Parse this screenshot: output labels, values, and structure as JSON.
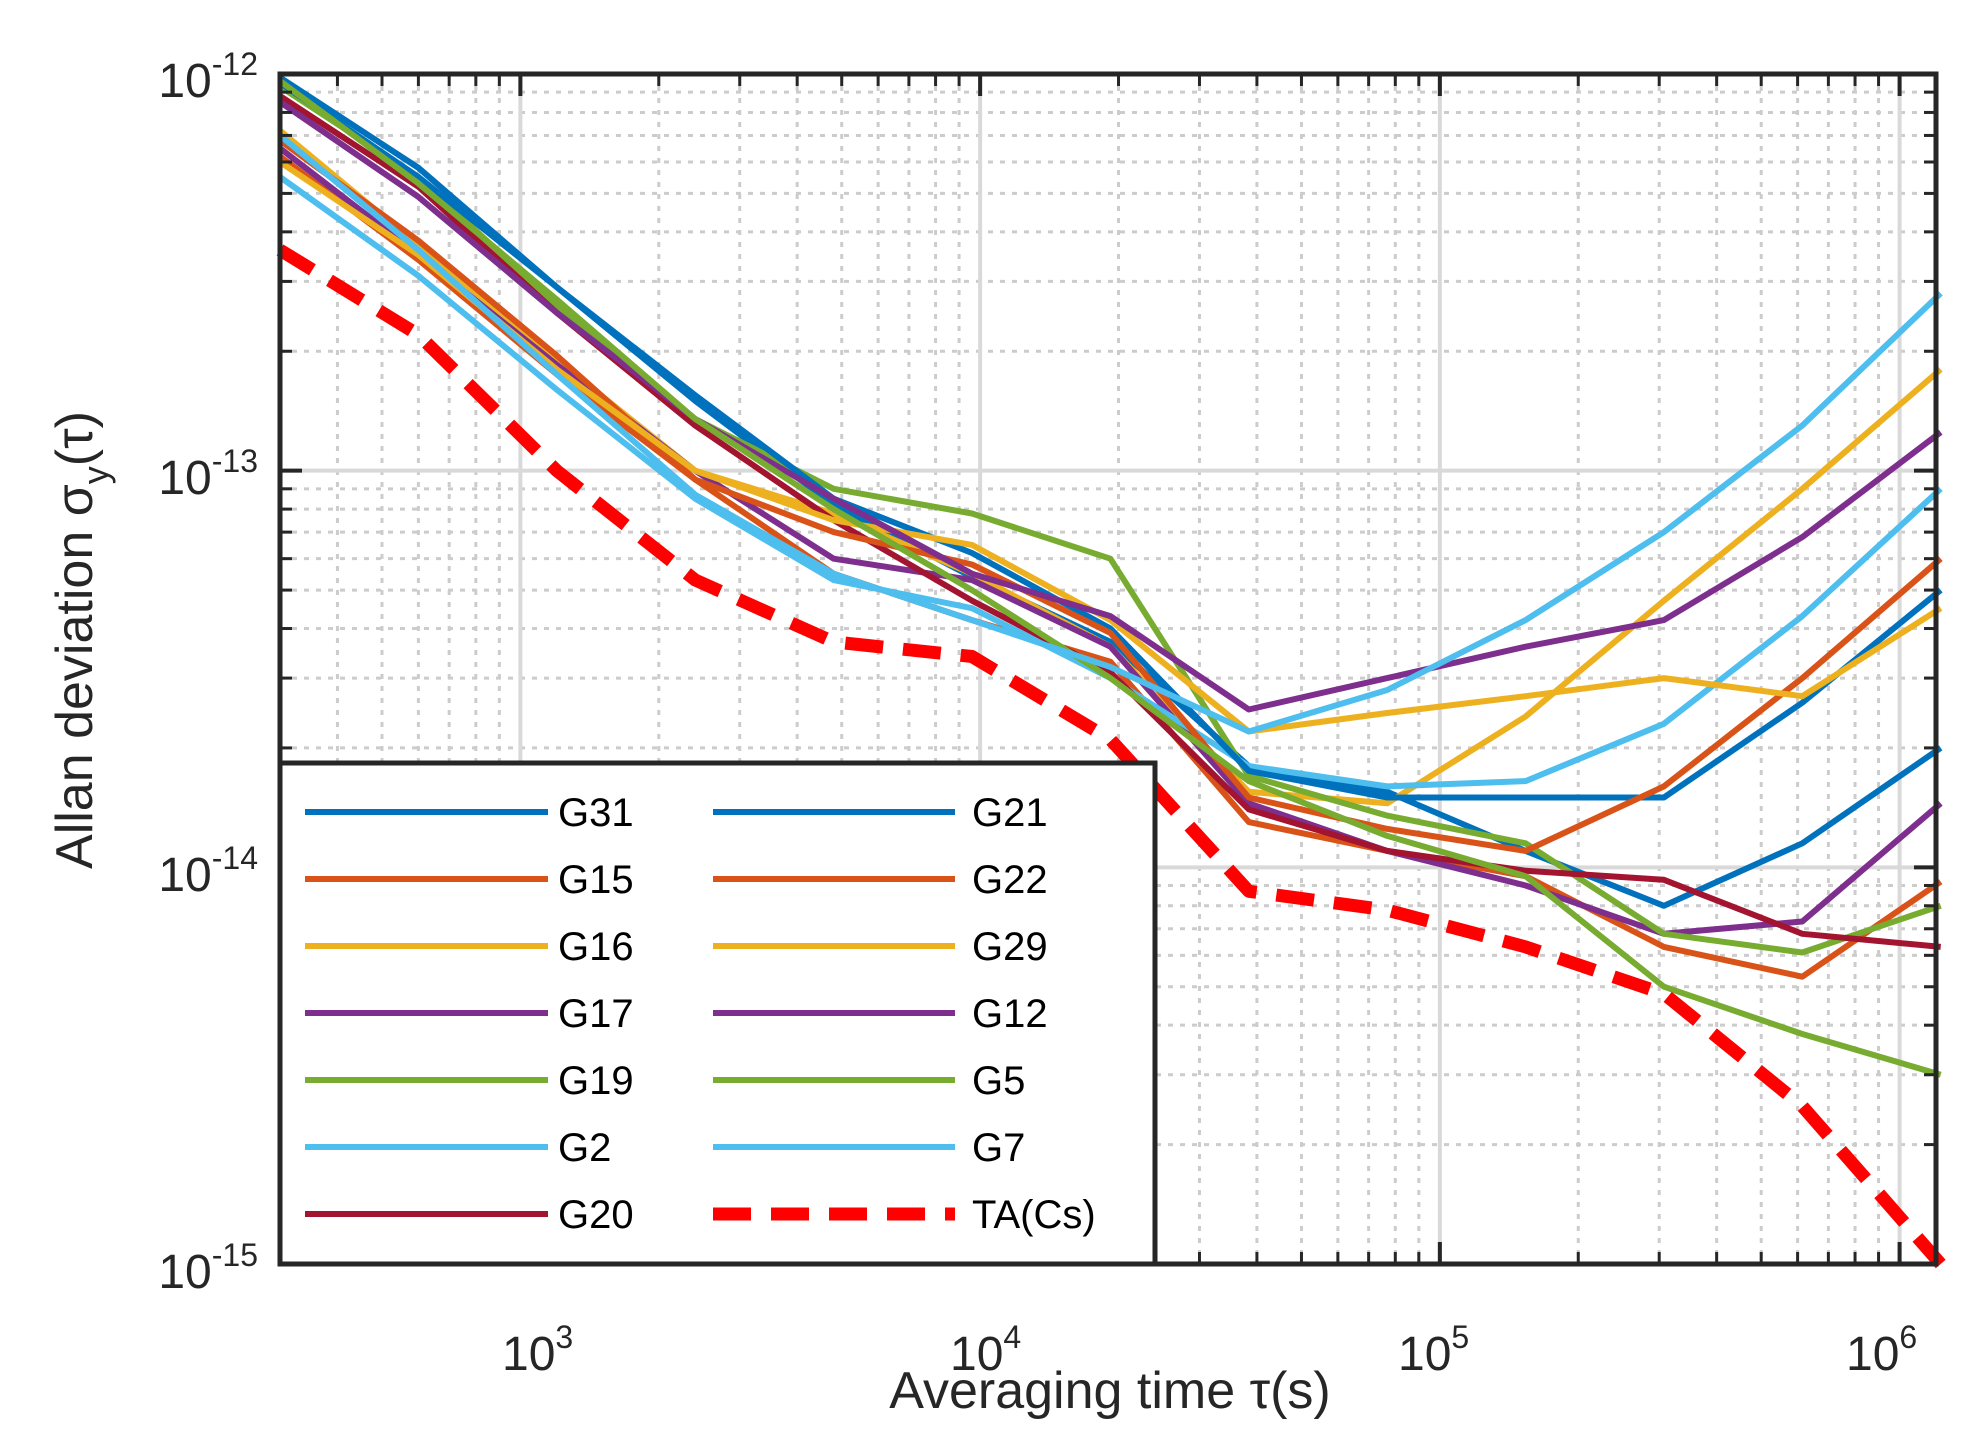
{
  "chart_data": {
    "type": "line",
    "xscale": "log",
    "yscale": "log",
    "xlim": [
      300,
      1200000
    ],
    "ylim": [
      1e-15,
      1e-12
    ],
    "xlabel": "Averaging time τ(s)",
    "ylabel": {
      "main": "Allan deviation σ",
      "sub": "y",
      "tail": "(τ)"
    },
    "grid": true,
    "legend_location": "lower-left",
    "x_ticks": [
      {
        "value": 1000,
        "base": "10",
        "exp": "3"
      },
      {
        "value": 10000,
        "base": "10",
        "exp": "4"
      },
      {
        "value": 100000,
        "base": "10",
        "exp": "5"
      },
      {
        "value": 1000000,
        "base": "10",
        "exp": "6"
      }
    ],
    "y_ticks": [
      {
        "value": 1e-12,
        "base": "10",
        "exp": "-12"
      },
      {
        "value": 1e-13,
        "base": "10",
        "exp": "-13"
      },
      {
        "value": 1e-14,
        "base": "10",
        "exp": "-14"
      },
      {
        "value": 1e-15,
        "base": "10",
        "exp": "-15"
      }
    ],
    "x": [
      300,
      600,
      1200,
      2400,
      4800,
      9600,
      19200,
      38400,
      76800,
      153600,
      307200,
      614400,
      1228800
    ],
    "series": [
      {
        "name": "G31",
        "color": "#0072BD",
        "width": 6,
        "dash": "",
        "values": [
          9.8e-13,
          5.8e-13,
          2.9e-13,
          1.5e-13,
          8.2e-14,
          5.4e-14,
          3.7e-14,
          1.8e-14,
          1.55e-14,
          1.1e-14,
          8e-15,
          1.15e-14,
          2e-14
        ]
      },
      {
        "name": "G15",
        "color": "#D95319",
        "width": 6,
        "dash": "",
        "values": [
          6.2e-13,
          3.4e-13,
          1.75e-13,
          9.5e-14,
          5.5e-14,
          4.2e-14,
          3.3e-14,
          1.3e-14,
          1.1e-14,
          9.5e-15,
          6.3e-15,
          5.3e-15,
          9.2e-15
        ]
      },
      {
        "name": "G16",
        "color": "#EDB120",
        "width": 6,
        "dash": "",
        "values": [
          7.2e-13,
          3.7e-13,
          1.9e-13,
          1e-13,
          7.8e-14,
          5.5e-14,
          3.6e-14,
          1.55e-14,
          1.45e-14,
          2.4e-14,
          4.7e-14,
          9e-14,
          1.8e-13
        ]
      },
      {
        "name": "G17",
        "color": "#7E2F8E",
        "width": 6,
        "dash": "",
        "values": [
          6.5e-13,
          3.5e-13,
          1.85e-13,
          1e-13,
          6e-14,
          5.3e-14,
          3.6e-14,
          1.45e-14,
          1.1e-14,
          9e-15,
          6.8e-15,
          7.3e-15,
          1.45e-14
        ]
      },
      {
        "name": "G19",
        "color": "#77AC30",
        "width": 6,
        "dash": "",
        "values": [
          9.3e-13,
          5.5e-13,
          2.6e-13,
          1.35e-13,
          9e-14,
          7.8e-14,
          6e-14,
          1.7e-14,
          1.35e-14,
          1.15e-14,
          6.8e-15,
          6.1e-15,
          8e-15
        ]
      },
      {
        "name": "G2",
        "color": "#4DBEEE",
        "width": 6,
        "dash": "",
        "values": [
          5.5e-13,
          3.1e-13,
          1.6e-13,
          8.5e-14,
          5.3e-14,
          4.5e-14,
          3e-14,
          1.8e-14,
          1.6e-14,
          1.65e-14,
          2.3e-14,
          4.3e-14,
          9e-14
        ]
      },
      {
        "name": "G20",
        "color": "#A2142F",
        "width": 6,
        "dash": "",
        "values": [
          8.8e-13,
          5.2e-13,
          2.5e-13,
          1.3e-13,
          7.5e-14,
          4.7e-14,
          3.1e-14,
          1.4e-14,
          1.1e-14,
          9.8e-15,
          9.3e-15,
          6.8e-15,
          6.3e-15
        ]
      },
      {
        "name": "G21",
        "color": "#0072BD",
        "width": 6,
        "dash": "",
        "values": [
          9.5e-13,
          5.5e-13,
          2.9e-13,
          1.55e-13,
          8.5e-14,
          6.2e-14,
          4e-14,
          1.75e-14,
          1.5e-14,
          1.5e-14,
          1.5e-14,
          2.6e-14,
          5e-14
        ]
      },
      {
        "name": "G22",
        "color": "#D95319",
        "width": 6,
        "dash": "",
        "values": [
          6.8e-13,
          3.8e-13,
          1.95e-13,
          9.5e-14,
          7e-14,
          5.8e-14,
          3.9e-14,
          1.5e-14,
          1.25e-14,
          1.1e-14,
          1.6e-14,
          3e-14,
          6e-14
        ]
      },
      {
        "name": "G29",
        "color": "#EDB120",
        "width": 6,
        "dash": "",
        "values": [
          6e-13,
          3.5e-13,
          1.8e-13,
          1e-13,
          7.5e-14,
          6.5e-14,
          4.2e-14,
          2.2e-14,
          2.45e-14,
          2.7e-14,
          3e-14,
          2.7e-14,
          4.5e-14
        ]
      },
      {
        "name": "G12",
        "color": "#7E2F8E",
        "width": 6,
        "dash": "",
        "values": [
          8.5e-13,
          4.9e-13,
          2.5e-13,
          1.35e-13,
          8.5e-14,
          5.5e-14,
          4.3e-14,
          2.5e-14,
          3e-14,
          3.6e-14,
          4.2e-14,
          6.8e-14,
          1.25e-13
        ]
      },
      {
        "name": "G5",
        "color": "#77AC30",
        "width": 6,
        "dash": "",
        "values": [
          9.6e-13,
          5.3e-13,
          2.7e-13,
          1.35e-13,
          8e-14,
          5e-14,
          3e-14,
          1.65e-14,
          1.2e-14,
          9.5e-15,
          5e-15,
          3.8e-15,
          3e-15
        ]
      },
      {
        "name": "G7",
        "color": "#4DBEEE",
        "width": 6,
        "dash": "",
        "values": [
          7e-13,
          3.6e-13,
          1.75e-13,
          8.7e-14,
          5.5e-14,
          4.2e-14,
          3.2e-14,
          2.2e-14,
          2.8e-14,
          4.2e-14,
          7e-14,
          1.3e-13,
          2.8e-13
        ]
      },
      {
        "name": "TA(Cs)",
        "color": "#FF0000",
        "width": 13,
        "dash": "38 20",
        "values": [
          3.6e-13,
          2.2e-13,
          1e-13,
          5.3e-14,
          3.7e-14,
          3.4e-14,
          2.1e-14,
          8.7e-15,
          7.8e-15,
          6.3e-15,
          4.8e-15,
          2.5e-15,
          1e-15
        ]
      }
    ]
  }
}
